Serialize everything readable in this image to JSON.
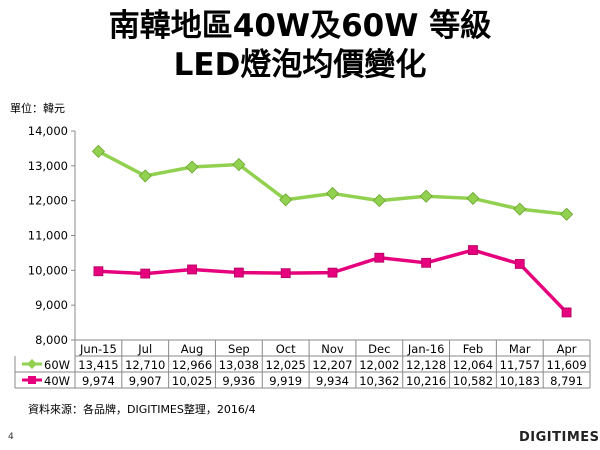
{
  "title_line1": "南韓地區40W及60W 等級",
  "title_line2": "LED燈泡均價變化",
  "unit_label": "單位：韓元",
  "source": "資料來源：各品牌，DIGITIMES整理，2016/4",
  "page_number": "4",
  "logo": "DIGITIMES",
  "chart_data": {
    "type": "line",
    "categories": [
      "Jun-15",
      "Jul",
      "Aug",
      "Sep",
      "Oct",
      "Nov",
      "Dec",
      "Jan-16",
      "Feb",
      "Mar",
      "Apr"
    ],
    "ylim": [
      8000,
      14000
    ],
    "yticks": [
      "8,000",
      "9,000",
      "10,000",
      "11,000",
      "12,000",
      "13,000",
      "14,000"
    ],
    "ytick_values": [
      8000,
      9000,
      10000,
      11000,
      12000,
      13000,
      14000
    ],
    "grid": false,
    "legend": "table-below",
    "series": [
      {
        "name": "60W",
        "color": "#92d050",
        "marker": "diamond",
        "values": [
          13415,
          12710,
          12966,
          13038,
          12025,
          12207,
          12002,
          12128,
          12064,
          11757,
          11609
        ],
        "labels": [
          "13,415",
          "12,710",
          "12,966",
          "13,038",
          "12,025",
          "12,207",
          "12,002",
          "12,128",
          "12,064",
          "11,757",
          "11,609"
        ]
      },
      {
        "name": "40W",
        "color": "#e6007e",
        "marker": "square",
        "values": [
          9974,
          9907,
          10025,
          9936,
          9919,
          9934,
          10362,
          10216,
          10582,
          10183,
          8791
        ],
        "labels": [
          "9,974",
          "9,907",
          "10,025",
          "9,936",
          "9,919",
          "9,934",
          "10,362",
          "10,216",
          "10,582",
          "10,183",
          "8,791"
        ]
      }
    ]
  }
}
